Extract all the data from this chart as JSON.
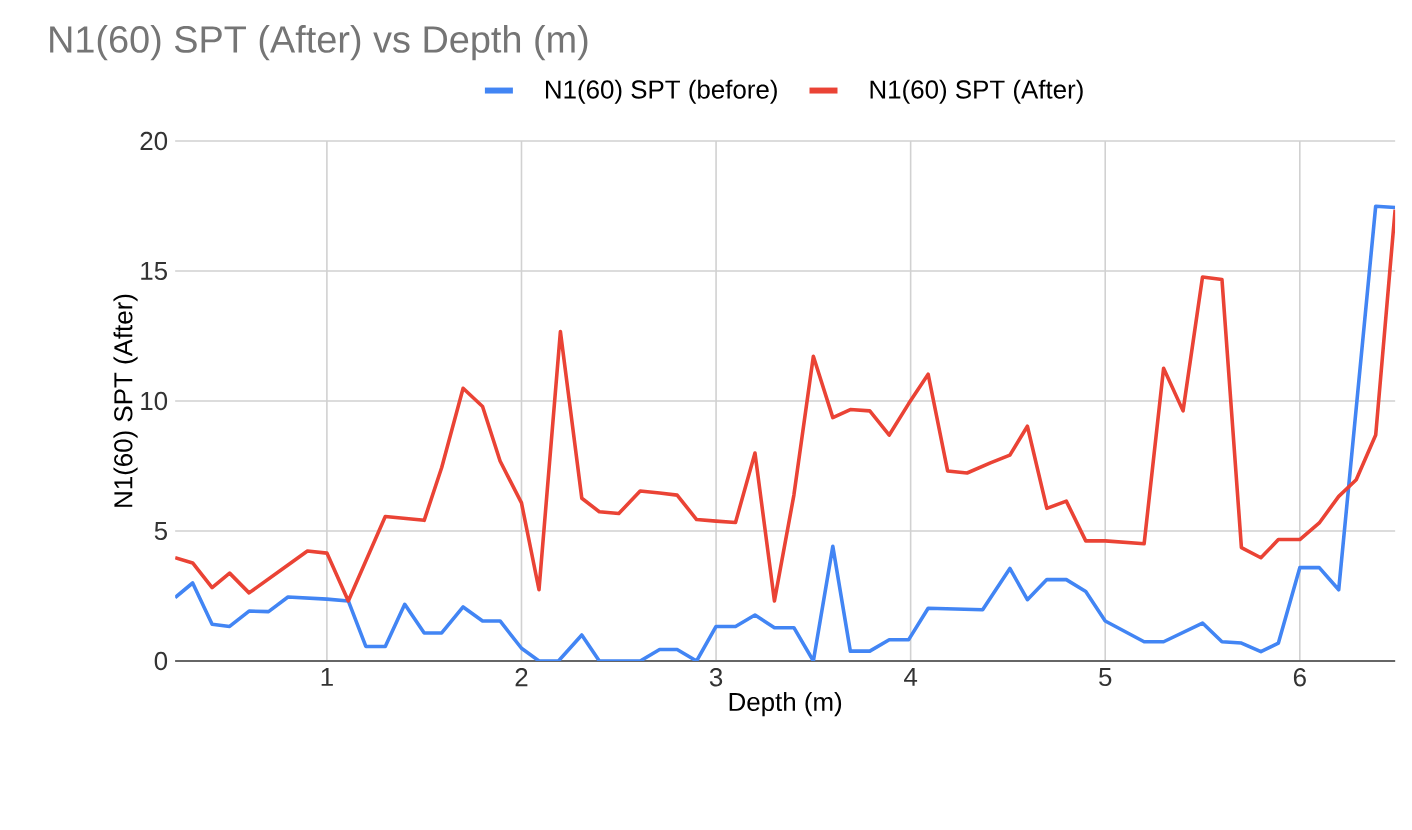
{
  "chart_data": {
    "type": "line",
    "title": "N1(60) SPT (After) vs Depth (m)",
    "xlabel": "Depth (m)",
    "ylabel": "N1(60) SPT (After)",
    "xlim": [
      0.22,
      6.49
    ],
    "xticks": [
      1,
      2,
      3,
      4,
      5,
      6
    ],
    "ylim": [
      0,
      20
    ],
    "yticks": [
      0,
      5,
      10,
      15,
      20
    ],
    "grid": true,
    "legend": "top",
    "marker": "none",
    "line_style": "solid",
    "series": [
      {
        "name": "N1(60) SPT (before)",
        "color": "#4285f4",
        "x": [
          0.22,
          0.31,
          0.41,
          0.5,
          0.6,
          0.7,
          0.8,
          1.0,
          1.11,
          1.2,
          1.3,
          1.4,
          1.5,
          1.59,
          1.7,
          1.8,
          1.89,
          2.0,
          2.09,
          2.19,
          2.31,
          2.4,
          2.5,
          2.61,
          2.71,
          2.8,
          2.9,
          3.0,
          3.1,
          3.2,
          3.3,
          3.4,
          3.5,
          3.6,
          3.69,
          3.79,
          3.89,
          3.99,
          4.09,
          4.37,
          4.51,
          4.6,
          4.7,
          4.8,
          4.9,
          5.0,
          5.2,
          5.3,
          5.5,
          5.6,
          5.7,
          5.8,
          5.89,
          6.0,
          6.1,
          6.2,
          6.39,
          6.49
        ],
        "values": [
          2.44,
          3.0,
          1.41,
          1.33,
          1.92,
          1.9,
          2.46,
          2.38,
          2.31,
          0.56,
          0.56,
          2.18,
          1.08,
          1.08,
          2.08,
          1.54,
          1.54,
          0.49,
          0,
          0,
          1.0,
          0,
          0,
          0,
          0.44,
          0.44,
          0,
          1.33,
          1.33,
          1.77,
          1.28,
          1.28,
          0,
          4.41,
          0.38,
          0.38,
          0.82,
          0.82,
          2.03,
          1.97,
          3.56,
          2.36,
          3.13,
          3.13,
          2.67,
          1.54,
          0.74,
          0.74,
          1.46,
          0.74,
          0.69,
          0.36,
          0.69,
          3.59,
          3.59,
          2.74,
          17.49,
          17.44
        ]
      },
      {
        "name": "N1(60) SPT (After)",
        "color": "#ea4335",
        "x": [
          0.22,
          0.31,
          0.41,
          0.5,
          0.6,
          0.8,
          0.9,
          1.0,
          1.11,
          1.3,
          1.5,
          1.59,
          1.7,
          1.8,
          1.89,
          2.0,
          2.09,
          2.2,
          2.31,
          2.4,
          2.5,
          2.61,
          2.71,
          2.8,
          2.9,
          3.0,
          3.1,
          3.2,
          3.3,
          3.4,
          3.5,
          3.6,
          3.69,
          3.79,
          3.89,
          3.99,
          4.09,
          4.19,
          4.29,
          4.41,
          4.51,
          4.6,
          4.7,
          4.8,
          4.9,
          5.0,
          5.2,
          5.3,
          5.4,
          5.5,
          5.6,
          5.7,
          5.8,
          5.89,
          6.0,
          6.1,
          6.2,
          6.29,
          6.39,
          6.49
        ],
        "values": [
          3.97,
          3.77,
          2.82,
          3.38,
          2.62,
          3.69,
          4.23,
          4.15,
          2.31,
          5.56,
          5.41,
          7.44,
          10.49,
          9.79,
          7.69,
          6.08,
          2.74,
          12.67,
          6.26,
          5.74,
          5.67,
          6.54,
          6.46,
          6.38,
          5.44,
          5.38,
          5.33,
          8.0,
          2.31,
          6.38,
          11.72,
          9.36,
          9.67,
          9.62,
          8.69,
          9.9,
          11.03,
          7.31,
          7.23,
          7.62,
          7.92,
          9.03,
          5.87,
          6.15,
          4.62,
          4.62,
          4.51,
          11.26,
          9.62,
          14.77,
          14.67,
          4.36,
          3.97,
          4.67,
          4.67,
          5.31,
          6.33,
          6.97,
          8.69,
          17.36
        ]
      }
    ]
  }
}
